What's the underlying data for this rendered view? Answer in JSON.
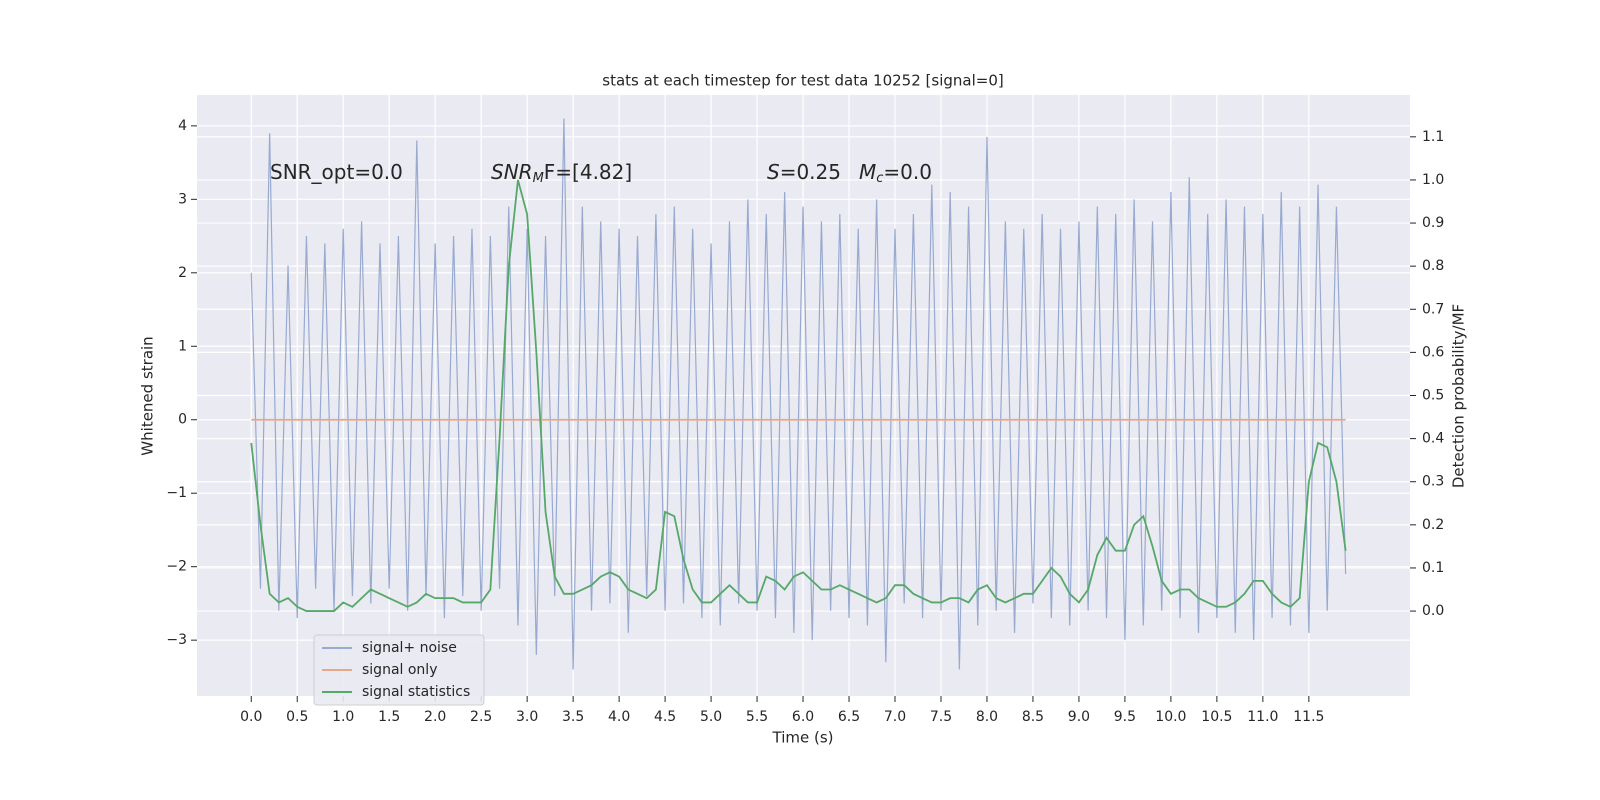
{
  "chart_data": {
    "type": "line",
    "title": "stats at each timestep for test data 10252 [signal=0]",
    "xlabel": "Time (s)",
    "ylabel": "Whitened strain",
    "y2label": "Detection probability/MF",
    "annotations": [
      {
        "parts": [
          "SNR_opt=0.0"
        ]
      },
      {
        "parts": [
          "SNR",
          "M",
          "F=[4.82]"
        ]
      },
      {
        "parts": [
          "S",
          "=0.25",
          "M",
          "c",
          "=0.0"
        ]
      }
    ],
    "grid": true,
    "legend": "lower left",
    "xlim": [
      -0.59,
      12.6
    ],
    "xticks": [
      {
        "value": 0,
        "label": "0.0"
      },
      0.5,
      {
        "value": 1,
        "label": "1.0"
      },
      1.5,
      {
        "value": 2,
        "label": "2.0"
      },
      2.5,
      {
        "value": 3,
        "label": "3.0"
      },
      3.5,
      {
        "value": 4,
        "label": "4.0"
      },
      4.5,
      {
        "value": 5,
        "label": "5.0"
      },
      5.5,
      {
        "value": 6,
        "label": "6.0"
      },
      6.5,
      {
        "value": 7,
        "label": "7.0"
      },
      7.5,
      {
        "value": 8,
        "label": "8.0"
      },
      8.5,
      {
        "value": 9,
        "label": "9.0"
      },
      9.5,
      {
        "value": 10,
        "label": "10.0"
      },
      10.5,
      {
        "value": 11,
        "label": "11.0"
      },
      11.5
    ],
    "ylim": [
      -3.76,
      4.42
    ],
    "yticks": [
      {
        "value": -3,
        "label": "−3"
      },
      {
        "value": -2,
        "label": "−2"
      },
      {
        "value": -1,
        "label": "−1"
      },
      0,
      1,
      2,
      3,
      4
    ],
    "y2lim": [
      -0.197,
      1.197
    ],
    "y2ticks": [
      {
        "value": 0,
        "label": "0.0"
      },
      0.1,
      0.2,
      0.3,
      0.4,
      0.5,
      0.6,
      0.7,
      0.8,
      0.9,
      {
        "value": 1,
        "label": "1.0"
      },
      1.1
    ],
    "x": [
      0.0,
      0.1,
      0.2,
      0.3,
      0.4,
      0.5,
      0.6,
      0.7,
      0.8,
      0.9,
      1.0,
      1.1,
      1.2,
      1.3,
      1.4,
      1.5,
      1.6,
      1.7,
      1.8,
      1.9,
      2.0,
      2.1,
      2.2,
      2.3,
      2.4,
      2.5,
      2.6,
      2.7,
      2.8,
      2.9,
      3.0,
      3.1,
      3.2,
      3.3,
      3.4,
      3.5,
      3.6,
      3.7,
      3.8,
      3.9,
      4.0,
      4.1,
      4.2,
      4.3,
      4.4,
      4.5,
      4.6,
      4.7,
      4.8,
      4.9,
      5.0,
      5.1,
      5.2,
      5.3,
      5.4,
      5.5,
      5.6,
      5.7,
      5.8,
      5.9,
      6.0,
      6.1,
      6.2,
      6.3,
      6.4,
      6.5,
      6.6,
      6.7,
      6.8,
      6.9,
      7.0,
      7.1,
      7.2,
      7.3,
      7.4,
      7.5,
      7.6,
      7.7,
      7.8,
      7.9,
      8.0,
      8.1,
      8.2,
      8.3,
      8.4,
      8.5,
      8.6,
      8.7,
      8.8,
      8.9,
      9.0,
      9.1,
      9.2,
      9.3,
      9.4,
      9.5,
      9.6,
      9.7,
      9.8,
      9.9,
      10.0,
      10.1,
      10.2,
      10.3,
      10.4,
      10.5,
      10.6,
      10.7,
      10.8,
      10.9,
      11.0,
      11.1,
      11.2,
      11.3,
      11.4,
      11.5,
      11.6,
      11.7,
      11.8,
      11.9
    ],
    "series": [
      {
        "name": "signal+ noise",
        "color": "#98aad0",
        "values": [
          2.0,
          -2.3,
          3.9,
          -2.6,
          2.1,
          -2.7,
          2.5,
          -2.3,
          2.4,
          -2.6,
          2.6,
          -2.4,
          2.7,
          -2.5,
          2.4,
          -2.3,
          2.5,
          -2.6,
          3.8,
          -2.4,
          2.4,
          -2.7,
          2.5,
          -2.4,
          2.6,
          -2.6,
          2.5,
          -2.3,
          2.9,
          -2.8,
          2.6,
          -3.2,
          2.5,
          -2.4,
          4.1,
          -3.4,
          2.9,
          -2.6,
          2.7,
          -2.5,
          2.6,
          -2.9,
          2.5,
          -2.4,
          2.8,
          -2.6,
          2.9,
          -2.5,
          2.6,
          -2.7,
          2.4,
          -2.8,
          2.7,
          -2.5,
          3.0,
          -2.6,
          2.8,
          -2.7,
          3.1,
          -2.9,
          2.9,
          -3.0,
          2.7,
          -2.6,
          2.8,
          -2.7,
          2.6,
          -2.8,
          3.0,
          -3.3,
          2.6,
          -2.5,
          2.8,
          -2.7,
          3.2,
          -2.6,
          3.1,
          -3.4,
          2.9,
          -2.8,
          3.85,
          -2.6,
          2.7,
          -2.9,
          2.6,
          -2.5,
          2.8,
          -2.7,
          2.6,
          -2.8,
          2.7,
          -2.6,
          2.9,
          -2.7,
          2.8,
          -3.0,
          3.0,
          -2.8,
          2.7,
          -2.6,
          3.1,
          -2.7,
          3.3,
          -2.9,
          2.8,
          -2.7,
          3.0,
          -2.9,
          2.9,
          -3.0,
          2.8,
          -2.7,
          3.1,
          -2.8,
          2.9,
          -2.9,
          3.2,
          -2.6,
          2.9,
          -2.1
        ]
      },
      {
        "name": "signal only",
        "color": "#e5a88a",
        "values": [
          0,
          0,
          0,
          0,
          0,
          0,
          0,
          0,
          0,
          0,
          0,
          0,
          0,
          0,
          0,
          0,
          0,
          0,
          0,
          0,
          0,
          0,
          0,
          0,
          0,
          0,
          0,
          0,
          0,
          0,
          0,
          0,
          0,
          0,
          0,
          0,
          0,
          0,
          0,
          0,
          0,
          0,
          0,
          0,
          0,
          0,
          0,
          0,
          0,
          0,
          0,
          0,
          0,
          0,
          0,
          0,
          0,
          0,
          0,
          0,
          0,
          0,
          0,
          0,
          0,
          0,
          0,
          0,
          0,
          0,
          0,
          0,
          0,
          0,
          0,
          0,
          0,
          0,
          0,
          0,
          0,
          0,
          0,
          0,
          0,
          0,
          0,
          0,
          0,
          0,
          0,
          0,
          0,
          0,
          0,
          0,
          0,
          0,
          0,
          0,
          0,
          0,
          0,
          0,
          0,
          0,
          0,
          0,
          0,
          0,
          0,
          0,
          0,
          0,
          0,
          0,
          0,
          0,
          0,
          0
        ]
      },
      {
        "name": "signal statistics",
        "color": "#55a868",
        "axis": "y2",
        "values": [
          0.39,
          0.2,
          0.04,
          0.02,
          0.03,
          0.01,
          0.0,
          0.0,
          0.0,
          0.0,
          0.02,
          0.01,
          0.03,
          0.05,
          0.04,
          0.03,
          0.02,
          0.01,
          0.02,
          0.04,
          0.03,
          0.03,
          0.03,
          0.02,
          0.02,
          0.02,
          0.05,
          0.4,
          0.8,
          1.0,
          0.92,
          0.6,
          0.23,
          0.08,
          0.04,
          0.04,
          0.05,
          0.06,
          0.08,
          0.09,
          0.08,
          0.05,
          0.04,
          0.03,
          0.05,
          0.23,
          0.22,
          0.12,
          0.05,
          0.02,
          0.02,
          0.04,
          0.06,
          0.04,
          0.02,
          0.02,
          0.08,
          0.07,
          0.05,
          0.08,
          0.09,
          0.07,
          0.05,
          0.05,
          0.06,
          0.05,
          0.04,
          0.03,
          0.02,
          0.03,
          0.06,
          0.06,
          0.04,
          0.03,
          0.02,
          0.02,
          0.03,
          0.03,
          0.02,
          0.05,
          0.06,
          0.03,
          0.02,
          0.03,
          0.04,
          0.04,
          0.07,
          0.1,
          0.08,
          0.04,
          0.02,
          0.05,
          0.13,
          0.17,
          0.14,
          0.14,
          0.2,
          0.22,
          0.15,
          0.07,
          0.04,
          0.05,
          0.05,
          0.03,
          0.02,
          0.01,
          0.01,
          0.02,
          0.04,
          0.07,
          0.07,
          0.04,
          0.02,
          0.01,
          0.03,
          0.3,
          0.39,
          0.38,
          0.3,
          0.14
        ]
      }
    ]
  }
}
